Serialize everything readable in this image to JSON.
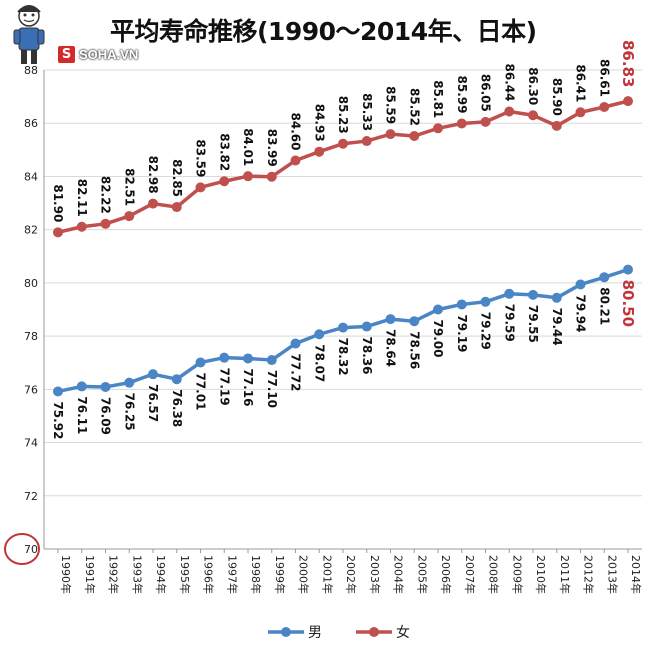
{
  "header": {
    "title": "平均寿命推移(1990〜2014年、日本)",
    "watermark_mark": "S",
    "watermark_text": "SOHA.VN"
  },
  "chart_data": {
    "type": "line",
    "title": "平均寿命推移(1990〜2014年、日本)",
    "xlabel": "",
    "ylabel": "",
    "ylim": [
      70,
      88
    ],
    "yticks": [
      "70",
      "72",
      "74",
      "76",
      "78",
      "80",
      "82",
      "84",
      "86",
      "88"
    ],
    "grid": true,
    "legend": "bottom",
    "categories": [
      "1990年",
      "1991年",
      "1992年",
      "1993年",
      "1994年",
      "1995年",
      "1996年",
      "1997年",
      "1998年",
      "1999年",
      "2000年",
      "2001年",
      "2002年",
      "2003年",
      "2004年",
      "2005年",
      "2006年",
      "2007年",
      "2008年",
      "2009年",
      "2010年",
      "2011年",
      "2012年",
      "2013年",
      "2014年"
    ],
    "series": [
      {
        "name": "男",
        "color": "#4a86c5",
        "values": [
          75.92,
          76.11,
          76.09,
          76.25,
          76.57,
          76.38,
          77.01,
          77.19,
          77.16,
          77.1,
          77.72,
          78.07,
          78.32,
          78.36,
          78.64,
          78.56,
          79.0,
          79.19,
          79.29,
          79.59,
          79.55,
          79.44,
          79.94,
          80.21,
          80.5
        ],
        "labels": [
          "75.92",
          "76.11",
          "76.09",
          "76.25",
          "76.57",
          "76.38",
          "77.01",
          "77.19",
          "77.16",
          "77.10",
          "77.72",
          "78.07",
          "78.32",
          "78.36",
          "78.64",
          "78.56",
          "79.00",
          "79.19",
          "79.29",
          "79.59",
          "79.55",
          "79.44",
          "79.94",
          "80.21",
          "80.50"
        ]
      },
      {
        "name": "女",
        "color": "#c0504d",
        "values": [
          81.9,
          82.11,
          82.22,
          82.51,
          82.98,
          82.85,
          83.59,
          83.82,
          84.01,
          83.99,
          84.6,
          84.93,
          85.23,
          85.33,
          85.59,
          85.52,
          85.81,
          85.99,
          86.05,
          86.44,
          86.3,
          85.9,
          86.41,
          86.61,
          86.83
        ],
        "labels": [
          "81.90",
          "82.11",
          "82.22",
          "82.51",
          "82.98",
          "82.85",
          "83.59",
          "83.82",
          "84.01",
          "83.99",
          "84.60",
          "84.93",
          "85.23",
          "85.33",
          "85.59",
          "85.52",
          "85.81",
          "85.99",
          "86.05",
          "86.44",
          "86.30",
          "85.90",
          "86.41",
          "86.61",
          "86.83"
        ]
      }
    ],
    "highlight_color": "#c0343a"
  }
}
